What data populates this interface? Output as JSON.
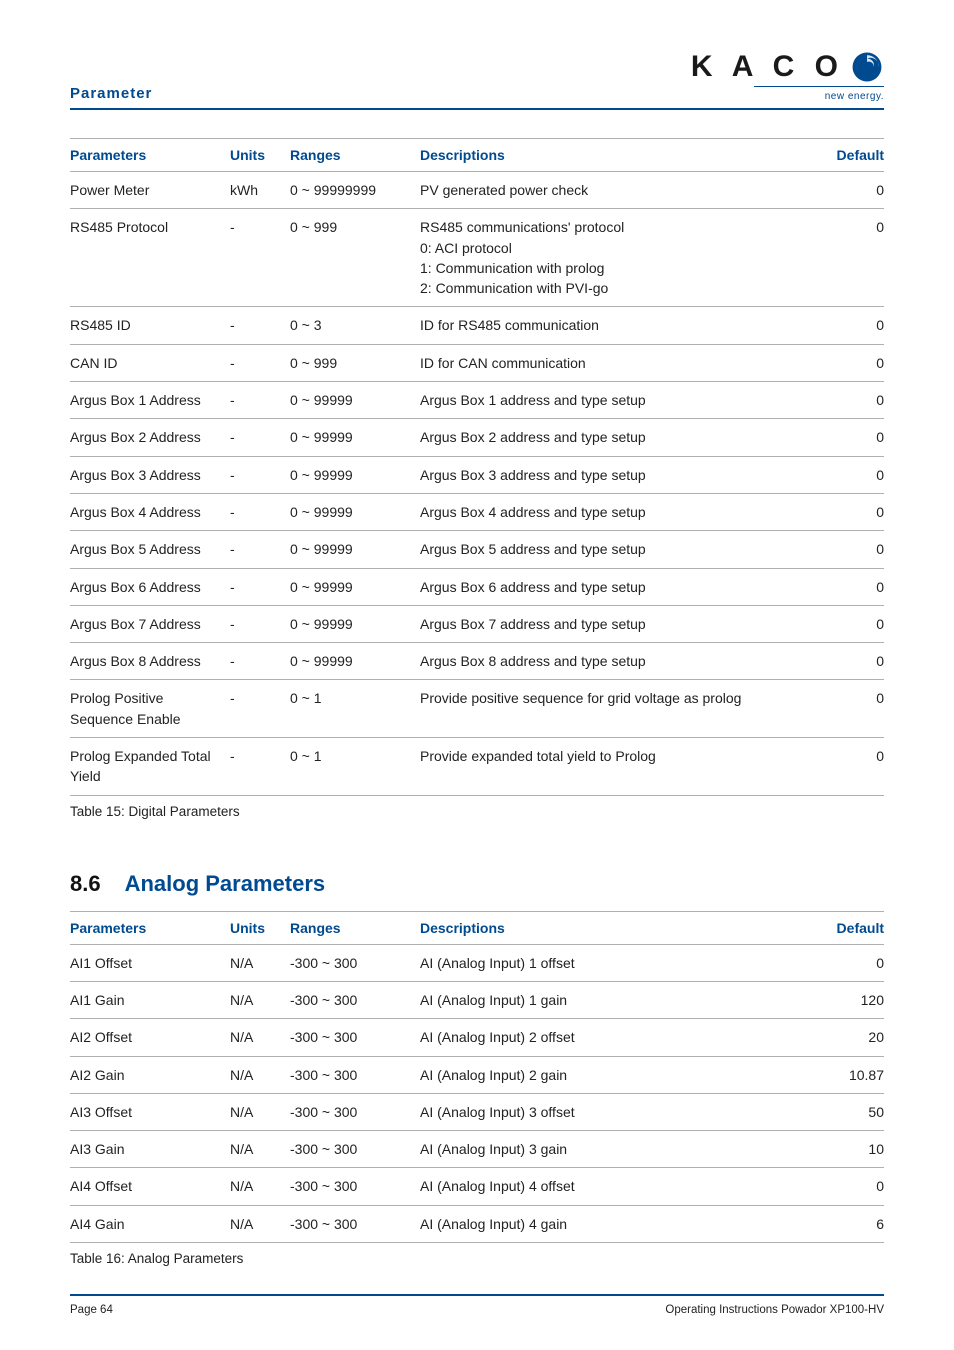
{
  "header": {
    "label": "Parameter"
  },
  "logo": {
    "text": "K A C O",
    "sub": "new energy."
  },
  "table1": {
    "headers": [
      "Parameters",
      "Units",
      "Ranges",
      "Descriptions",
      "Default"
    ],
    "rows": [
      {
        "param": "Power Meter",
        "units": "kWh",
        "ranges": "0 ~ 99999999",
        "desc": "PV generated power check",
        "default": "0"
      },
      {
        "param": "RS485 Protocol",
        "units": "-",
        "ranges": "0 ~ 999",
        "desc": "RS485 communications' protocol\n0: ACI protocol\n1: Communication with prolog\n2: Communication with PVI-go",
        "default": "0"
      },
      {
        "param": "RS485 ID",
        "units": "-",
        "ranges": "0 ~ 3",
        "desc": "ID for RS485 communication",
        "default": "0"
      },
      {
        "param": "CAN ID",
        "units": "-",
        "ranges": "0 ~ 999",
        "desc": "ID for CAN communication",
        "default": "0"
      },
      {
        "param": "Argus Box 1 Address",
        "units": "-",
        "ranges": "0 ~ 99999",
        "desc": "Argus Box 1 address and type setup",
        "default": "0"
      },
      {
        "param": "Argus Box 2 Address",
        "units": "-",
        "ranges": "0 ~ 99999",
        "desc": "Argus Box 2 address and type setup",
        "default": "0"
      },
      {
        "param": "Argus Box 3 Address",
        "units": "-",
        "ranges": "0 ~ 99999",
        "desc": "Argus Box 3 address and type setup",
        "default": "0"
      },
      {
        "param": "Argus Box 4 Address",
        "units": "-",
        "ranges": "0 ~ 99999",
        "desc": "Argus Box 4 address and type setup",
        "default": "0"
      },
      {
        "param": "Argus Box 5 Address",
        "units": "-",
        "ranges": "0 ~ 99999",
        "desc": "Argus Box 5 address and type setup",
        "default": "0"
      },
      {
        "param": "Argus Box 6 Address",
        "units": "-",
        "ranges": "0 ~ 99999",
        "desc": "Argus Box 6 address and type setup",
        "default": "0"
      },
      {
        "param": "Argus Box 7 Address",
        "units": "-",
        "ranges": "0 ~ 99999",
        "desc": "Argus Box 7 address and type setup",
        "default": "0"
      },
      {
        "param": "Argus Box 8 Address",
        "units": "-",
        "ranges": "0 ~ 99999",
        "desc": "Argus Box 8 address and type setup",
        "default": "0"
      },
      {
        "param": "Prolog Positive Sequence Enable",
        "units": "-",
        "ranges": "0 ~ 1",
        "desc": "Provide positive sequence for grid voltage as prolog",
        "default": "0"
      },
      {
        "param": "Prolog Expanded Total Yield",
        "units": "-",
        "ranges": "0 ~ 1",
        "desc": "Provide expanded total yield to Prolog",
        "default": "0"
      }
    ],
    "caption": "Table 15:  Digital Parameters"
  },
  "section": {
    "num": "8.6",
    "title": "Analog Parameters"
  },
  "table2": {
    "headers": [
      "Parameters",
      "Units",
      "Ranges",
      "Descriptions",
      "Default"
    ],
    "rows": [
      {
        "param": "AI1 Offset",
        "units": "N/A",
        "ranges": "-300 ~ 300",
        "desc": "AI (Analog Input) 1 offset",
        "default": "0"
      },
      {
        "param": "AI1 Gain",
        "units": "N/A",
        "ranges": "-300 ~ 300",
        "desc": "AI (Analog Input) 1 gain",
        "default": "120"
      },
      {
        "param": "AI2 Offset",
        "units": "N/A",
        "ranges": "-300 ~ 300",
        "desc": "AI (Analog Input) 2 offset",
        "default": "20"
      },
      {
        "param": "AI2 Gain",
        "units": "N/A",
        "ranges": "-300 ~ 300",
        "desc": "AI (Analog Input) 2 gain",
        "default": "10.87"
      },
      {
        "param": "AI3 Offset",
        "units": "N/A",
        "ranges": "-300 ~ 300",
        "desc": "AI (Analog Input) 3 offset",
        "default": "50"
      },
      {
        "param": "AI3 Gain",
        "units": "N/A",
        "ranges": "-300 ~ 300",
        "desc": "AI (Analog Input) 3 gain",
        "default": "10"
      },
      {
        "param": "AI4 Offset",
        "units": "N/A",
        "ranges": "-300 ~ 300",
        "desc": "AI (Analog Input) 4 offset",
        "default": "0"
      },
      {
        "param": "AI4 Gain",
        "units": "N/A",
        "ranges": "-300 ~ 300",
        "desc": "AI (Analog Input) 4 gain",
        "default": "6"
      }
    ],
    "caption": "Table 16:  Analog Parameters"
  },
  "footer": {
    "left": "Page 64",
    "right": "Operating Instructions Powador XP100-HV"
  }
}
